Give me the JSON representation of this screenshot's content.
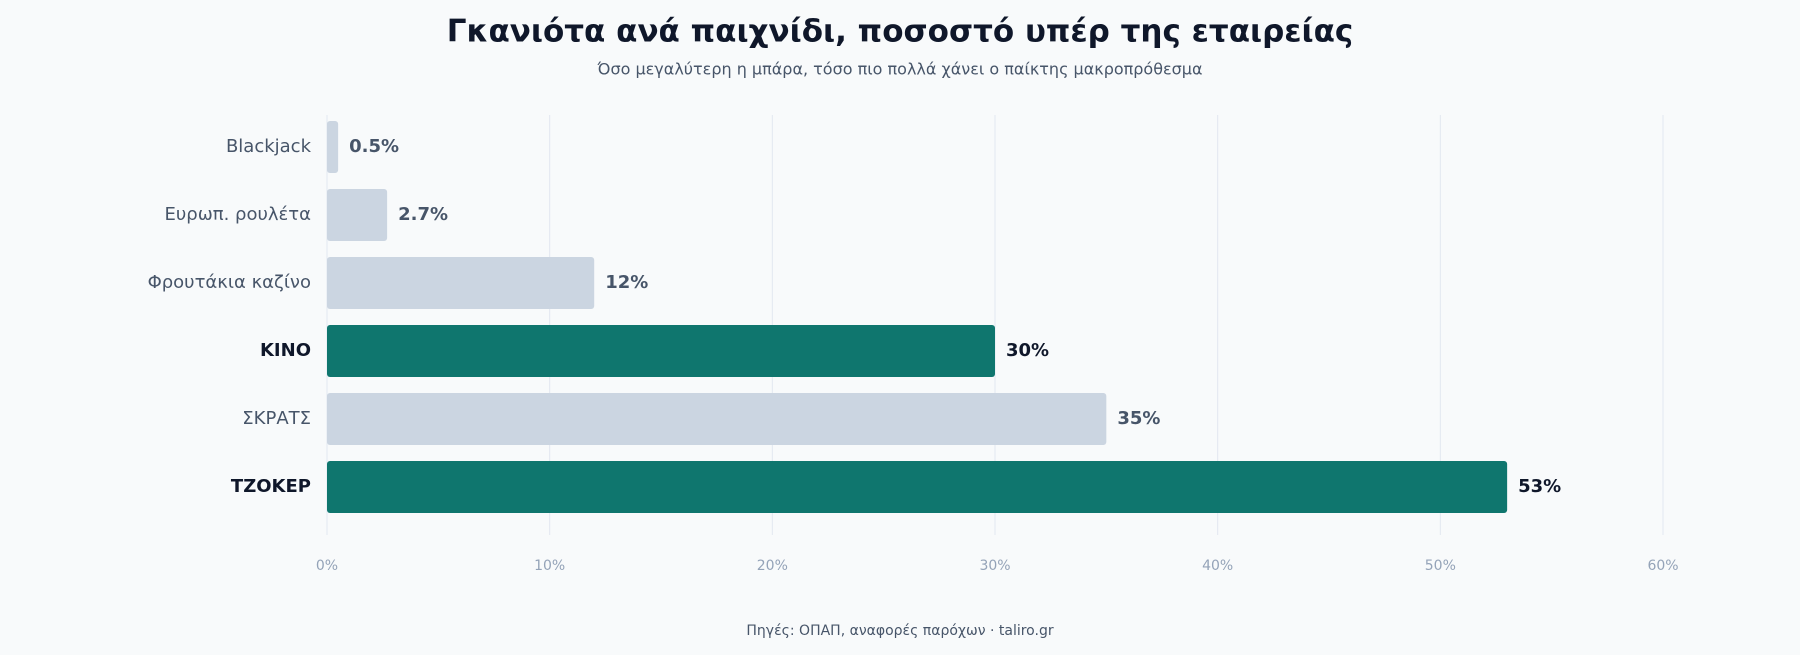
{
  "chart_data": {
    "type": "bar",
    "orientation": "horizontal",
    "title": "Γκανιότα ανά παιχνίδι, ποσοστό υπέρ της εταιρείας",
    "subtitle": "Όσο μεγαλύτερη η μπάρα, τόσο πιο πολλά χάνει ο παίκτης μακροπρόθεσμα",
    "footer": "Πηγές: ΟΠΑΠ, αναφορές παρόχων · taliro.gr",
    "categories": [
      "Blackjack",
      "Ευρωπ. ρουλέτα",
      "Φρουτάκια καζίνο",
      "ΚΙΝΟ",
      "ΣΚΡΑΤΣ",
      "ΤΖΟΚΕΡ"
    ],
    "values": [
      0.5,
      2.7,
      12,
      30,
      35,
      53
    ],
    "value_labels": [
      "0.5%",
      "2.7%",
      "12%",
      "30%",
      "35%",
      "53%"
    ],
    "colors": [
      "#cbd5e1",
      "#cbd5e1",
      "#cbd5e1",
      "#0f766e",
      "#cbd5e1",
      "#0f766e"
    ],
    "highlight_color": "#0f766e",
    "xlim": [
      0,
      60
    ],
    "xticks": [
      {
        "value": 0,
        "label": "0%"
      },
      {
        "value": 10,
        "label": "10%"
      },
      {
        "value": 20,
        "label": "20%"
      },
      {
        "value": 30,
        "label": "30%"
      },
      {
        "value": 40,
        "label": "40%"
      },
      {
        "value": 50,
        "label": "50%"
      },
      {
        "value": 60,
        "label": "60%"
      }
    ],
    "grid": true
  }
}
